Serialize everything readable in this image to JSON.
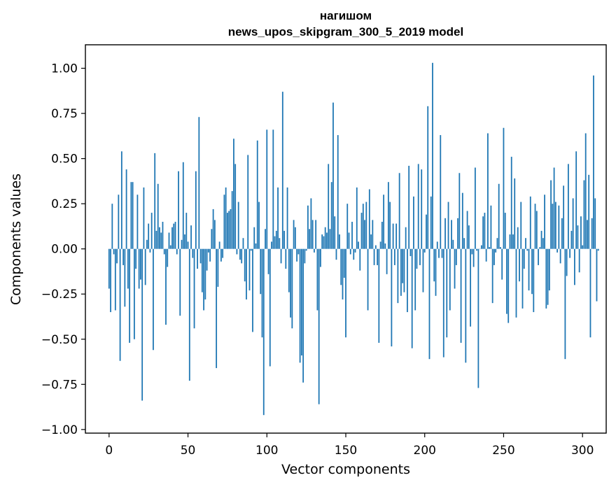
{
  "chart_data": {
    "type": "bar",
    "title": "нагишом",
    "subtitle": "news_upos_skipgram_300_5_2019 model",
    "xlabel": "Vector components",
    "ylabel": "Components values",
    "xlim": [
      -15,
      315
    ],
    "ylim": [
      -1.02,
      1.13
    ],
    "xticks": [
      0,
      50,
      100,
      150,
      200,
      250,
      300
    ],
    "yticks": [
      -1.0,
      -0.75,
      -0.5,
      -0.25,
      0.0,
      0.25,
      0.5,
      0.75,
      1.0
    ],
    "ytick_labels": [
      "−1.00",
      "−0.75",
      "−0.50",
      "−0.25",
      "0.00",
      "0.25",
      "0.50",
      "0.75",
      "1.00"
    ],
    "xtick_labels": [
      "0",
      "50",
      "100",
      "150",
      "200",
      "250",
      "300"
    ],
    "grid": false,
    "color": "#1f77b4",
    "values": [
      -0.22,
      -0.35,
      0.25,
      -0.03,
      -0.34,
      -0.08,
      0.3,
      -0.62,
      0.54,
      -0.09,
      -0.32,
      0.44,
      -0.22,
      -0.52,
      0.37,
      0.37,
      -0.5,
      -0.11,
      0.3,
      -0.22,
      -0.17,
      -0.84,
      0.34,
      -0.2,
      0.05,
      0.14,
      -0.02,
      0.2,
      -0.56,
      0.53,
      0.1,
      0.36,
      0.12,
      0.09,
      0.15,
      -0.03,
      -0.42,
      -0.1,
      0.09,
      0.02,
      0.12,
      0.14,
      0.15,
      -0.03,
      0.43,
      -0.37,
      0.05,
      0.48,
      0.08,
      0.2,
      0.04,
      -0.73,
      0.13,
      -0.05,
      -0.44,
      0.43,
      -0.11,
      0.73,
      -0.08,
      -0.24,
      -0.34,
      -0.28,
      -0.12,
      -0.02,
      -0.07,
      0.11,
      0.22,
      0.16,
      -0.66,
      -0.21,
      0.04,
      -0.07,
      -0.05,
      0.3,
      0.34,
      0.2,
      0.21,
      0.22,
      0.32,
      0.61,
      0.47,
      -0.03,
      0.26,
      -0.06,
      -0.08,
      0.06,
      -0.18,
      -0.28,
      0.52,
      -0.23,
      -0.01,
      -0.46,
      0.12,
      0.03,
      0.6,
      0.26,
      -0.25,
      -0.49,
      -0.92,
      0.11,
      0.66,
      -0.14,
      -0.65,
      0.04,
      0.66,
      0.07,
      0.1,
      0.34,
      0.06,
      -0.08,
      0.87,
      0.1,
      -0.11,
      0.34,
      -0.24,
      -0.38,
      -0.44,
      0.16,
      0.12,
      -0.07,
      -0.03,
      -0.63,
      -0.59,
      -0.74,
      -0.08,
      -0.01,
      0.24,
      0.11,
      0.28,
      0.16,
      -0.02,
      0.16,
      -0.34,
      -0.86,
      -0.1,
      0.08,
      0.07,
      0.12,
      0.09,
      0.47,
      0.11,
      0.37,
      0.81,
      0.18,
      -0.06,
      0.63,
      0.08,
      -0.2,
      -0.28,
      -0.16,
      -0.49,
      0.25,
      0.09,
      -0.03,
      0.15,
      -0.06,
      -0.02,
      0.34,
      0.04,
      -0.12,
      0.2,
      0.25,
      0.16,
      0.26,
      -0.34,
      0.33,
      0.08,
      0.16,
      -0.09,
      0.02,
      -0.09,
      -0.52,
      0.04,
      0.15,
      0.3,
      0.03,
      -0.14,
      0.37,
      0.26,
      -0.54,
      0.14,
      -0.09,
      0.14,
      -0.3,
      0.42,
      -0.26,
      -0.19,
      -0.24,
      0.12,
      -0.35,
      0.46,
      -0.04,
      -0.55,
      0.29,
      -0.34,
      -0.11,
      0.47,
      -0.09,
      0.44,
      -0.24,
      -0.02,
      0.19,
      0.79,
      -0.61,
      0.29,
      1.03,
      -0.18,
      -0.26,
      0.04,
      -0.05,
      0.63,
      -0.05,
      -0.6,
      0.17,
      -0.49,
      0.26,
      -0.34,
      0.16,
      0.05,
      -0.22,
      -0.09,
      0.17,
      0.42,
      -0.52,
      0.31,
      0.06,
      -0.63,
      0.21,
      0.13,
      -0.43,
      -0.03,
      -0.1,
      0.45,
      -0.01,
      -0.77,
      0.0,
      0.02,
      0.18,
      0.2,
      -0.07,
      0.64,
      0.01,
      0.24,
      -0.3,
      -0.09,
      -0.02,
      0.06,
      0.36,
      0.01,
      -0.17,
      0.67,
      0.2,
      -0.36,
      -0.41,
      0.08,
      0.51,
      0.08,
      0.39,
      -0.38,
      0.12,
      -0.18,
      0.26,
      -0.33,
      -0.11,
      0.06,
      -0.01,
      -0.23,
      0.29,
      -0.25,
      -0.35,
      0.25,
      0.21,
      -0.09,
      0.01,
      0.1,
      0.06,
      0.3,
      -0.33,
      -0.31,
      -0.23,
      0.38,
      0.25,
      0.45,
      0.26,
      -0.02,
      0.24,
      -0.08,
      0.17,
      0.35,
      -0.61,
      -0.15,
      0.47,
      -0.05,
      0.1,
      0.28,
      -0.2,
      0.54,
      0.13,
      -0.13,
      0.18,
      0.02,
      0.38,
      0.64,
      0.16,
      0.41,
      -0.49,
      0.17,
      0.96,
      0.28,
      -0.29,
      -0.01
    ]
  }
}
